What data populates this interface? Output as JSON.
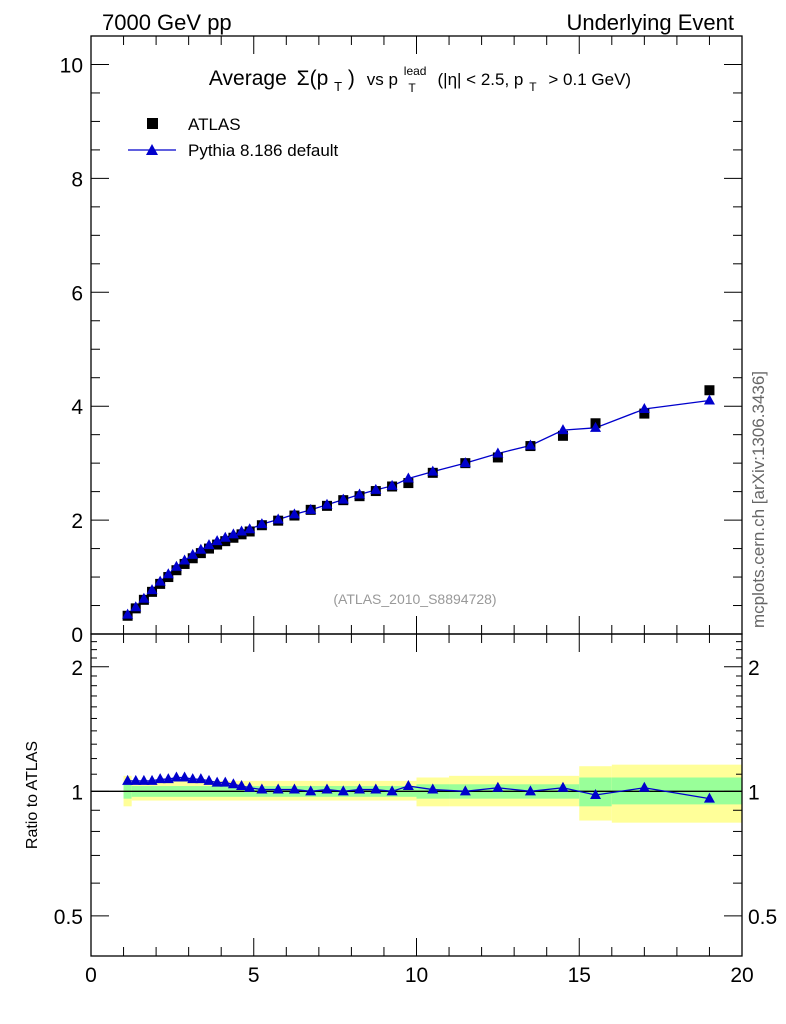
{
  "header": {
    "left": "7000 GeV pp",
    "right": "Underlying Event"
  },
  "watermark": "mcplots.cern.ch [arXiv:1306.3436]",
  "colors": {
    "atlas": "#000000",
    "pythia": "#0000cc",
    "band_inner": "#99ff99",
    "band_outer": "#ffff99"
  },
  "chart_data": [
    {
      "type": "scatter",
      "title_parts": {
        "prefix": "Average",
        "sigma": "Σ(p",
        "sub_t": "T",
        "close": ")",
        "vs": "vs p",
        "sup_lead": "lead",
        "eta": "(|η| < 2.5, p",
        "cut": "> 0.1 GeV)"
      },
      "reference": "(ATLAS_2010_S8894728)",
      "xlim": [
        0,
        20
      ],
      "ylim": [
        0,
        10.5
      ],
      "yticks": [
        "0",
        "2",
        "4",
        "6",
        "8",
        "10"
      ],
      "legend_position": "top-left",
      "series": [
        {
          "name": "ATLAS",
          "marker": "square",
          "points": [
            [
              1.125,
              0.32
            ],
            [
              1.375,
              0.45
            ],
            [
              1.625,
              0.6
            ],
            [
              1.875,
              0.74
            ],
            [
              2.125,
              0.88
            ],
            [
              2.375,
              1.0
            ],
            [
              2.625,
              1.12
            ],
            [
              2.875,
              1.23
            ],
            [
              3.125,
              1.33
            ],
            [
              3.375,
              1.42
            ],
            [
              3.625,
              1.5
            ],
            [
              3.875,
              1.57
            ],
            [
              4.125,
              1.63
            ],
            [
              4.375,
              1.69
            ],
            [
              4.625,
              1.75
            ],
            [
              4.875,
              1.8
            ],
            [
              5.25,
              1.91
            ],
            [
              5.75,
              1.99
            ],
            [
              6.25,
              2.08
            ],
            [
              6.75,
              2.18
            ],
            [
              7.25,
              2.25
            ],
            [
              7.75,
              2.35
            ],
            [
              8.25,
              2.42
            ],
            [
              8.75,
              2.51
            ],
            [
              9.25,
              2.59
            ],
            [
              9.75,
              2.65
            ],
            [
              10.5,
              2.83
            ],
            [
              11.5,
              3.0
            ],
            [
              12.5,
              3.1
            ],
            [
              13.5,
              3.3
            ],
            [
              14.5,
              3.48
            ],
            [
              15.5,
              3.7
            ],
            [
              17.0,
              3.87
            ],
            [
              19.0,
              4.28
            ]
          ]
        },
        {
          "name": "Pythia 8.186 default",
          "marker": "triangle",
          "points": [
            [
              1.125,
              0.34
            ],
            [
              1.375,
              0.47
            ],
            [
              1.625,
              0.62
            ],
            [
              1.875,
              0.77
            ],
            [
              2.125,
              0.92
            ],
            [
              2.375,
              1.05
            ],
            [
              2.625,
              1.18
            ],
            [
              2.875,
              1.29
            ],
            [
              3.125,
              1.39
            ],
            [
              3.375,
              1.48
            ],
            [
              3.625,
              1.56
            ],
            [
              3.875,
              1.63
            ],
            [
              4.125,
              1.69
            ],
            [
              4.375,
              1.75
            ],
            [
              4.625,
              1.8
            ],
            [
              4.875,
              1.84
            ],
            [
              5.25,
              1.93
            ],
            [
              5.75,
              2.01
            ],
            [
              6.25,
              2.1
            ],
            [
              6.75,
              2.18
            ],
            [
              7.25,
              2.27
            ],
            [
              7.75,
              2.36
            ],
            [
              8.25,
              2.45
            ],
            [
              8.75,
              2.53
            ],
            [
              9.25,
              2.6
            ],
            [
              9.75,
              2.73
            ],
            [
              10.5,
              2.85
            ],
            [
              11.5,
              3.0
            ],
            [
              12.5,
              3.17
            ],
            [
              13.5,
              3.31
            ],
            [
              14.5,
              3.58
            ],
            [
              15.5,
              3.62
            ],
            [
              17.0,
              3.95
            ],
            [
              19.0,
              4.1
            ]
          ]
        }
      ]
    },
    {
      "type": "line",
      "ylabel": "Ratio to ATLAS",
      "xlim": [
        0,
        20
      ],
      "ylim": [
        0.4,
        2.4
      ],
      "xticks": [
        "0",
        "5",
        "10",
        "15",
        "20"
      ],
      "yticks": [
        "0.5",
        "1",
        "2"
      ],
      "bands": [
        [
          1.0,
          1.25,
          0.96,
          1.04,
          0.92,
          1.09
        ],
        [
          1.25,
          10.0,
          0.97,
          1.03,
          0.95,
          1.06
        ],
        [
          10.0,
          11.0,
          0.96,
          1.04,
          0.92,
          1.08
        ],
        [
          11.0,
          15.0,
          0.96,
          1.04,
          0.92,
          1.09
        ],
        [
          15.0,
          16.0,
          0.92,
          1.08,
          0.85,
          1.15
        ],
        [
          16.0,
          20.0,
          0.93,
          1.08,
          0.84,
          1.16
        ]
      ],
      "ratio": [
        [
          1.125,
          1.06
        ],
        [
          1.375,
          1.06
        ],
        [
          1.625,
          1.06
        ],
        [
          1.875,
          1.06
        ],
        [
          2.125,
          1.07
        ],
        [
          2.375,
          1.07
        ],
        [
          2.625,
          1.08
        ],
        [
          2.875,
          1.08
        ],
        [
          3.125,
          1.07
        ],
        [
          3.375,
          1.07
        ],
        [
          3.625,
          1.06
        ],
        [
          3.875,
          1.05
        ],
        [
          4.125,
          1.05
        ],
        [
          4.375,
          1.04
        ],
        [
          4.625,
          1.03
        ],
        [
          4.875,
          1.02
        ],
        [
          5.25,
          1.01
        ],
        [
          5.75,
          1.01
        ],
        [
          6.25,
          1.01
        ],
        [
          6.75,
          1.0
        ],
        [
          7.25,
          1.01
        ],
        [
          7.75,
          1.0
        ],
        [
          8.25,
          1.01
        ],
        [
          8.75,
          1.01
        ],
        [
          9.25,
          1.0
        ],
        [
          9.75,
          1.03
        ],
        [
          10.5,
          1.01
        ],
        [
          11.5,
          1.0
        ],
        [
          12.5,
          1.02
        ],
        [
          13.5,
          1.0
        ],
        [
          14.5,
          1.02
        ],
        [
          15.5,
          0.98
        ],
        [
          17.0,
          1.02
        ],
        [
          19.0,
          0.96
        ]
      ]
    }
  ]
}
